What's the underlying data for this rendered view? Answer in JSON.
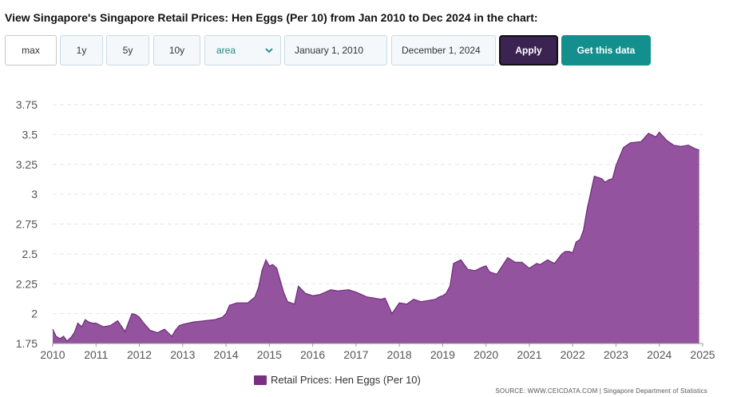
{
  "heading": "View Singapore's Singapore Retail Prices: Hen Eggs (Per 10) from Jan 2010 to Dec 2024 in the chart:",
  "controls": {
    "range_buttons": [
      "max",
      "1y",
      "5y",
      "10y"
    ],
    "active_range": "max",
    "chart_type_value": "area",
    "start_date": "January 1, 2010",
    "end_date": "December 1, 2024",
    "apply_label": "Apply",
    "get_data_label": "Get this data"
  },
  "legend_label": "Retail Prices: Hen Eggs (Per 10)",
  "source": "SOURCE: WWW.CEICDATA.COM | Singapore Department of Statistics",
  "colors": {
    "area_fill": "#8e4a9a",
    "area_line": "#6d2c7a",
    "legend_swatch": "#7a2f83",
    "apply_bg": "#3b2452",
    "get_data_bg": "#13908d",
    "grid": "#e3e6ea"
  },
  "chart_data": {
    "type": "area",
    "title": "",
    "xlabel": "",
    "ylabel": "",
    "ylim": [
      1.75,
      3.75
    ],
    "xlim": [
      2010,
      2025
    ],
    "y_ticks": [
      "3.75",
      "3.5",
      "3.25",
      "3",
      "2.75",
      "2.5",
      "2.25",
      "2",
      "1.75"
    ],
    "x_ticks": [
      "2010",
      "2011",
      "2012",
      "2013",
      "2014",
      "2015",
      "2016",
      "2017",
      "2018",
      "2019",
      "2020",
      "2021",
      "2022",
      "2023",
      "2024",
      "2025"
    ],
    "grid": true,
    "legend_position": "bottom",
    "series": [
      {
        "name": "Retail Prices: Hen Eggs (Per 10)",
        "x": [
          2010.0,
          2010.08,
          2010.17,
          2010.25,
          2010.33,
          2010.42,
          2010.5,
          2010.58,
          2010.67,
          2010.75,
          2010.83,
          2010.92,
          2011.0,
          2011.17,
          2011.33,
          2011.5,
          2011.67,
          2011.83,
          2011.92,
          2012.0,
          2012.08,
          2012.25,
          2012.42,
          2012.58,
          2012.75,
          2012.83,
          2012.92,
          2013.0,
          2013.25,
          2013.5,
          2013.75,
          2013.92,
          2014.0,
          2014.08,
          2014.25,
          2014.5,
          2014.67,
          2014.75,
          2014.83,
          2014.92,
          2015.0,
          2015.08,
          2015.17,
          2015.33,
          2015.42,
          2015.58,
          2015.67,
          2015.83,
          2016.0,
          2016.17,
          2016.42,
          2016.58,
          2016.83,
          2017.0,
          2017.25,
          2017.42,
          2017.58,
          2017.67,
          2017.83,
          2018.0,
          2018.17,
          2018.33,
          2018.5,
          2018.67,
          2018.83,
          2018.92,
          2019.0,
          2019.08,
          2019.17,
          2019.25,
          2019.42,
          2019.58,
          2019.75,
          2019.92,
          2020.0,
          2020.08,
          2020.25,
          2020.5,
          2020.67,
          2020.83,
          2021.0,
          2021.17,
          2021.25,
          2021.42,
          2021.58,
          2021.75,
          2021.83,
          2021.92,
          2022.0,
          2022.08,
          2022.17,
          2022.25,
          2022.33,
          2022.5,
          2022.67,
          2022.75,
          2022.83,
          2022.92,
          2023.0,
          2023.17,
          2023.33,
          2023.58,
          2023.75,
          2023.92,
          2024.0,
          2024.17,
          2024.33,
          2024.5,
          2024.67,
          2024.83,
          2024.92
        ],
        "values": [
          1.87,
          1.81,
          1.79,
          1.81,
          1.77,
          1.8,
          1.84,
          1.92,
          1.89,
          1.95,
          1.93,
          1.92,
          1.92,
          1.89,
          1.9,
          1.94,
          1.85,
          2.0,
          1.99,
          1.97,
          1.93,
          1.86,
          1.84,
          1.87,
          1.81,
          1.86,
          1.9,
          1.91,
          1.93,
          1.94,
          1.95,
          1.97,
          2.0,
          2.07,
          2.09,
          2.09,
          2.14,
          2.22,
          2.36,
          2.45,
          2.4,
          2.41,
          2.38,
          2.18,
          2.1,
          2.08,
          2.23,
          2.17,
          2.15,
          2.16,
          2.2,
          2.19,
          2.2,
          2.18,
          2.14,
          2.13,
          2.12,
          2.13,
          2.0,
          2.09,
          2.08,
          2.12,
          2.1,
          2.11,
          2.12,
          2.14,
          2.15,
          2.17,
          2.23,
          2.42,
          2.45,
          2.37,
          2.36,
          2.39,
          2.4,
          2.35,
          2.33,
          2.47,
          2.43,
          2.43,
          2.38,
          2.42,
          2.41,
          2.45,
          2.42,
          2.5,
          2.52,
          2.52,
          2.51,
          2.6,
          2.62,
          2.7,
          2.87,
          3.15,
          3.13,
          3.1,
          3.12,
          3.13,
          3.24,
          3.39,
          3.43,
          3.44,
          3.51,
          3.48,
          3.52,
          3.45,
          3.41,
          3.4,
          3.41,
          3.38,
          3.37
        ]
      }
    ]
  }
}
